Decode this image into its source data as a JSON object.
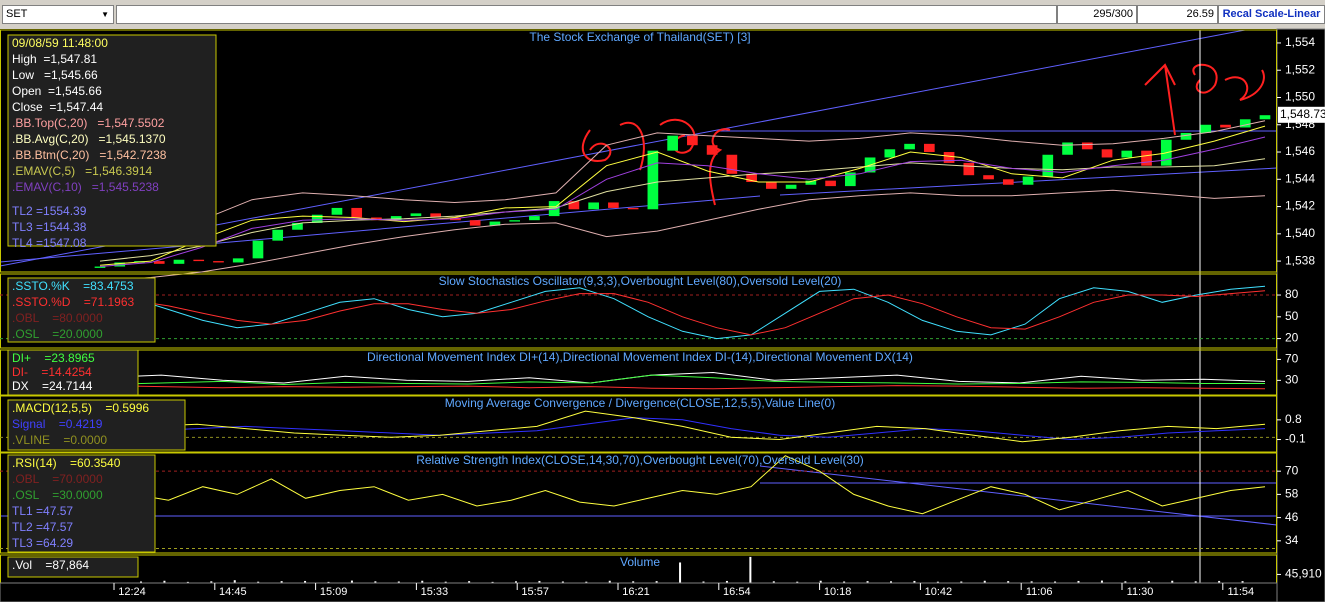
{
  "toolbar": {
    "symbol": "SET",
    "counter": "295/300",
    "value": "26.59",
    "scale_button": "Recal Scale-Linear"
  },
  "x_axis": {
    "labels": [
      "12:24",
      "14:45",
      "15:09",
      "15:33",
      "15:57",
      "16:21",
      "16:54",
      "10:18",
      "10:42",
      "11:06",
      "11:30",
      "11:54"
    ]
  },
  "panels": [
    {
      "type": "candlestick",
      "title": "The Stock Exchange of Thailand(SET) [3]",
      "info": [
        {
          "text": "09/08/59 11:48:00",
          "color": "#ffff60"
        },
        {
          "text": "High  =1,547.81",
          "color": "#ffffff"
        },
        {
          "text": "Low   =1,545.66",
          "color": "#ffffff"
        },
        {
          "text": "Open  =1,545.66",
          "color": "#ffffff"
        },
        {
          "text": "Close  =1,547.44",
          "color": "#ffffff"
        },
        {
          "text": ".BB.Top(C,20)   =1,547.5502",
          "color": "#ffa0a0"
        },
        {
          "text": ".BB.Avg(C,20)   =1,545.1370",
          "color": "#ffffc0"
        },
        {
          "text": ".BB.Btm(C,20)   =1,542.7238",
          "color": "#ffc0a0"
        },
        {
          "text": ".EMAV(C,5)   =1,546.3914",
          "color": "#c8c850"
        },
        {
          "text": ".EMAV(C,10)   =1,545.5238",
          "color": "#8040c0"
        },
        {
          "text": "TL2 =1554.39",
          "color": "#8080ff"
        },
        {
          "text": "TL3 =1544.38",
          "color": "#8080ff"
        },
        {
          "text": "TL4 =1547.08",
          "color": "#8080ff"
        }
      ],
      "ylim": [
        1537.2,
        1554.95
      ],
      "yticks": [
        {
          "value": 1538,
          "label": "1,538"
        },
        {
          "value": 1540,
          "label": "1,540"
        },
        {
          "value": 1542,
          "label": "1,542"
        },
        {
          "value": 1544,
          "label": "1,544"
        },
        {
          "value": 1546,
          "label": "1,546"
        },
        {
          "value": 1548,
          "label": "1,548"
        },
        {
          "value": 1550,
          "label": "1,550"
        },
        {
          "value": 1552,
          "label": "1,552"
        },
        {
          "value": 1554,
          "label": "1,554"
        }
      ],
      "last": {
        "value": 1548.73,
        "label": "1,548.73"
      },
      "open": [
        1537.5,
        1537.6,
        1537.9,
        1538.0,
        1537.8,
        1538.1,
        1538.0,
        1537.9,
        1538.2,
        1539.5,
        1540.3,
        1540.8,
        1541.4,
        1541.9,
        1541.2,
        1541.0,
        1541.3,
        1541.5,
        1541.2,
        1541.0,
        1540.6,
        1540.9,
        1541.0,
        1541.3,
        1542.4,
        1541.8,
        1542.3,
        1541.9,
        1541.8,
        1546.1,
        1547.2,
        1546.5,
        1545.8,
        1544.4,
        1543.8,
        1543.3,
        1543.6,
        1543.9,
        1543.5,
        1544.5,
        1545.6,
        1546.2,
        1546.6,
        1546.0,
        1545.2,
        1544.3,
        1544.0,
        1543.6,
        1544.2,
        1545.8,
        1546.7,
        1546.2,
        1545.6,
        1546.1,
        1545.0,
        1546.9,
        1547.4,
        1548.0,
        1547.8,
        1548.4
      ],
      "close": [
        1537.6,
        1537.9,
        1538.0,
        1537.8,
        1538.1,
        1538.0,
        1537.9,
        1538.2,
        1539.5,
        1540.3,
        1540.8,
        1541.4,
        1541.9,
        1541.2,
        1541.0,
        1541.3,
        1541.5,
        1541.2,
        1541.0,
        1540.6,
        1540.9,
        1541.0,
        1541.3,
        1542.4,
        1541.8,
        1542.3,
        1541.9,
        1541.8,
        1546.1,
        1547.2,
        1546.5,
        1545.8,
        1544.4,
        1543.8,
        1543.3,
        1543.6,
        1543.9,
        1543.5,
        1544.5,
        1545.6,
        1546.2,
        1546.6,
        1546.0,
        1545.2,
        1544.3,
        1544.0,
        1543.6,
        1544.2,
        1545.8,
        1546.7,
        1546.2,
        1545.6,
        1546.1,
        1545.0,
        1546.9,
        1547.4,
        1548.0,
        1547.8,
        1548.4,
        1548.7
      ],
      "series": [
        {
          "color": "#e0b0b0",
          "values": [
            1539.5,
            1540.0,
            1541.0,
            1542.5,
            1543.0,
            1542.8,
            1542.5,
            1542.3,
            1542.5,
            1543.0,
            1546.5,
            1547.4,
            1547.2,
            1547.0,
            1546.8,
            1547.0,
            1547.4,
            1547.2,
            1546.8,
            1546.5,
            1546.6,
            1547.0,
            1547.5,
            1548.3
          ]
        },
        {
          "color": "#e0e0a0",
          "values": [
            1538.0,
            1538.4,
            1539.1,
            1540.1,
            1540.8,
            1541.0,
            1541.1,
            1541.3,
            1541.6,
            1541.9,
            1543.1,
            1543.8,
            1544.1,
            1544.4,
            1544.6,
            1544.9,
            1545.2,
            1545.0,
            1544.8,
            1544.7,
            1544.9,
            1544.9,
            1545.0,
            1545.5
          ]
        },
        {
          "color": "#e0b0b0",
          "values": [
            1536.5,
            1536.8,
            1537.2,
            1537.8,
            1538.5,
            1539.2,
            1539.8,
            1540.3,
            1540.7,
            1540.8,
            1539.8,
            1540.2,
            1541.0,
            1541.8,
            1542.5,
            1542.8,
            1543.0,
            1542.8,
            1542.8,
            1543.0,
            1543.2,
            1542.9,
            1542.6,
            1542.8
          ]
        },
        {
          "color": "#ffff40",
          "values": [
            1537.7,
            1538.0,
            1539.6,
            1541.0,
            1541.3,
            1541.2,
            1540.9,
            1541.2,
            1541.9,
            1542.0,
            1545.0,
            1546.0,
            1544.6,
            1543.8,
            1543.8,
            1544.8,
            1546.0,
            1545.6,
            1544.4,
            1544.1,
            1545.4,
            1545.9,
            1546.8,
            1547.9
          ]
        },
        {
          "color": "#a040e0",
          "values": [
            1537.6,
            1537.9,
            1539.0,
            1540.4,
            1541.0,
            1541.1,
            1541.0,
            1541.1,
            1541.6,
            1541.8,
            1544.0,
            1545.2,
            1545.0,
            1544.4,
            1544.0,
            1544.4,
            1545.3,
            1545.4,
            1544.8,
            1544.5,
            1545.0,
            1545.4,
            1546.2,
            1547.1
          ]
        }
      ]
    },
    {
      "type": "line",
      "title": "Slow Stochastics Oscillator(9,3,3),Overbought Level(80),Oversold Level(20)",
      "info": [
        {
          "text": ".SSTO.%K    =83.4753",
          "color": "#40e0ff"
        },
        {
          "text": ".SSTO.%D    =71.1963",
          "color": "#ff3030"
        },
        {
          "text": ".OBL    =80.0000",
          "color": "#802020"
        },
        {
          "text": ".OSL    =20.0000",
          "color": "#30a030"
        }
      ],
      "ylim": [
        7,
        109
      ],
      "yticks": [
        20,
        50,
        80
      ],
      "levels": [
        {
          "value": 80,
          "color": "#a02020"
        },
        {
          "value": 20,
          "color": "#30a030"
        }
      ],
      "series": [
        {
          "color": "#40e0ff",
          "values": [
            80,
            75,
            60,
            45,
            35,
            40,
            55,
            70,
            75,
            60,
            50,
            55,
            70,
            85,
            90,
            75,
            50,
            30,
            20,
            25,
            55,
            85,
            88,
            70,
            45,
            30,
            25,
            40,
            75,
            90,
            85,
            70,
            80,
            88,
            92
          ]
        },
        {
          "color": "#ff3030",
          "values": [
            70,
            72,
            65,
            55,
            45,
            40,
            45,
            58,
            68,
            68,
            60,
            55,
            60,
            72,
            82,
            82,
            70,
            50,
            35,
            25,
            35,
            55,
            75,
            80,
            68,
            50,
            35,
            33,
            50,
            70,
            80,
            80,
            78,
            82,
            86
          ]
        }
      ]
    },
    {
      "type": "line",
      "title": "Directional Movement Index DI+(14),Directional Movement Index DI-(14),Directional Movement DX(14)",
      "info": [
        {
          "text": "DI+    =23.8965",
          "color": "#40ff40"
        },
        {
          "text": "DI-    =14.4254",
          "color": "#ff3030"
        },
        {
          "text": "DX    =24.7144",
          "color": "#ffffff"
        }
      ],
      "ylim": [
        2,
        88
      ],
      "yticks": [
        30,
        70
      ],
      "series": [
        {
          "color": "#ffffff",
          "values": [
            35,
            40,
            30,
            25,
            38,
            30,
            28,
            35,
            25,
            40,
            45,
            30,
            35,
            40,
            28,
            25,
            38,
            30,
            32,
            28
          ]
        },
        {
          "color": "#40ff40",
          "values": [
            22,
            25,
            28,
            22,
            26,
            24,
            23,
            27,
            25,
            40,
            35,
            28,
            26,
            25,
            23,
            24,
            27,
            26,
            24,
            24
          ]
        },
        {
          "color": "#ff3030",
          "values": [
            20,
            18,
            16,
            18,
            17,
            18,
            19,
            16,
            18,
            15,
            14,
            16,
            18,
            20,
            19,
            17,
            15,
            16,
            15,
            14
          ]
        }
      ]
    },
    {
      "type": "line",
      "title": "Moving Average Convergence / Divergence(CLOSE,12,5,5),Value Line(0)",
      "info": [
        {
          "text": ".MACD(12,5,5)    =0.5996",
          "color": "#ffff40"
        },
        {
          "text": "Signal    =0.4219",
          "color": "#4040ff"
        },
        {
          "text": ".VLINE    =0.0000",
          "color": "#909020"
        }
      ],
      "ylim": [
        -0.67,
        1.89
      ],
      "yticks": [
        0.8,
        -0.1
      ],
      "levels": [
        {
          "value": 0,
          "color": "#909020"
        }
      ],
      "series": [
        {
          "color": "#3030ff",
          "values": [
            0.2,
            0.3,
            0.4,
            0.5,
            0.4,
            0.3,
            0.2,
            0.1,
            0.2,
            0.3,
            0.6,
            0.9,
            0.8,
            0.4,
            0.1,
            0.0,
            0.2,
            0.4,
            0.3,
            0.1,
            -0.1,
            0.0,
            0.2,
            0.3,
            0.4
          ]
        },
        {
          "color": "#ffff40",
          "values": [
            0.3,
            0.5,
            0.6,
            0.4,
            0.2,
            0.1,
            0.0,
            0.1,
            0.3,
            0.5,
            1.2,
            0.9,
            0.5,
            0.0,
            -0.1,
            0.2,
            0.5,
            0.4,
            0.1,
            -0.2,
            0.0,
            0.3,
            0.5,
            0.4,
            0.6
          ]
        }
      ]
    },
    {
      "type": "line",
      "title": "Relative Strength Index(CLOSE,14,30,70),Overbought Level(70),Oversold Level(30)",
      "info": [
        {
          "text": ".RSI(14)    =60.3540",
          "color": "#ffff40"
        },
        {
          "text": ".OBL    =70.0000",
          "color": "#802020"
        },
        {
          "text": ".OSL    =30.0000",
          "color": "#30a030"
        },
        {
          "text": "TL1 =47.57",
          "color": "#8080ff"
        },
        {
          "text": "TL2 =47.57",
          "color": "#8080ff"
        },
        {
          "text": "TL3 =64.29",
          "color": "#8080ff"
        }
      ],
      "ylim": [
        27.7,
        79.4
      ],
      "yticks": [
        34,
        46,
        58,
        70
      ],
      "levels": [
        {
          "value": 70,
          "color": "#a02020"
        },
        {
          "value": 30,
          "color": "#a0a020"
        }
      ],
      "series": [
        {
          "color": "#ffff40",
          "values": [
            60,
            58,
            55,
            62,
            58,
            66,
            56,
            60,
            62,
            55,
            58,
            52,
            55,
            60,
            54,
            52,
            56,
            60,
            58,
            62,
            78,
            70,
            58,
            52,
            48,
            55,
            62,
            58,
            50,
            55,
            60,
            52,
            56,
            60,
            62
          ]
        }
      ]
    },
    {
      "type": "bar",
      "title": "Volume",
      "info": [
        {
          "text": ".Vol    =87,864",
          "color": "#ffffff"
        }
      ],
      "ylim": [
        0,
        150000
      ],
      "yticks": [
        {
          "value": 45910,
          "label": "45,910"
        }
      ],
      "color": "#ffffff",
      "values": [
        8000,
        12000,
        6000,
        9000,
        15000,
        7000,
        10000,
        11000,
        6000,
        13000,
        9000,
        8000,
        12000,
        7000,
        10000,
        6000,
        9000,
        11000,
        8000,
        7000,
        12000,
        9000,
        10000,
        110000,
        8000,
        11000,
        140000,
        9000,
        7000,
        12000,
        8000,
        10000,
        9000,
        11000,
        7000,
        8000,
        12000,
        10000,
        9000,
        8000,
        11000,
        13000,
        9000,
        10000,
        12000,
        9000,
        11000,
        10000
      ]
    }
  ]
}
